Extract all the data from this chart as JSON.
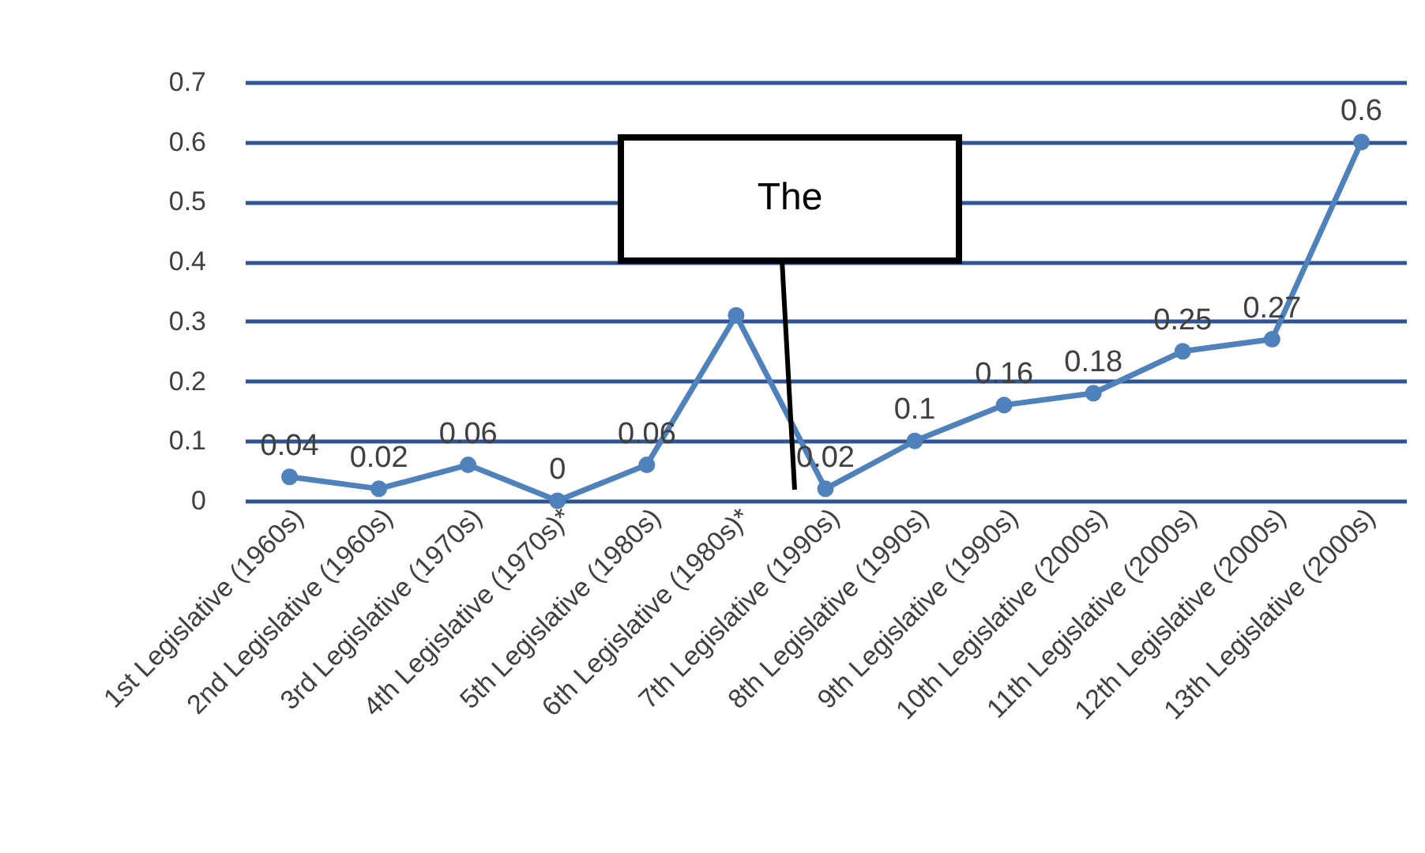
{
  "chart_data": {
    "type": "line",
    "categories": [
      "1st Legislative (1960s)",
      "2nd Legislative (1960s)",
      "3rd Legislative (1970s)",
      "4th Legislative (1970s)*",
      "5th Legislative (1980s)",
      "6th Legislative (1980s)*",
      "7th Legislative (1990s)",
      "8th Legislative (1990s)",
      "9th Legislative (1990s)",
      "10th Legislative (2000s)",
      "11th Legislative (2000s)",
      "12th Legislative (2000s)",
      "13th Legislative (2000s)"
    ],
    "series": [
      {
        "color": "#4f81bd",
        "values": [
          0.04,
          0.02,
          0.06,
          0,
          0.06,
          0.31,
          0.02,
          0.1,
          0.16,
          0.18,
          0.25,
          0.27,
          0.6
        ],
        "value_labels": [
          "0.04",
          "0.02",
          "0.06",
          "0",
          "0.06",
          null,
          "0.02",
          "0.1",
          "0.16",
          "0.18",
          "0.25",
          "0.27",
          "0.6"
        ]
      }
    ],
    "ylim": [
      0,
      0.7
    ],
    "yticks": [
      0,
      0.1,
      0.2,
      0.3,
      0.4,
      0.5,
      0.6,
      0.7
    ],
    "grid": "y",
    "marker": "circle",
    "line_style": "solid",
    "legend": false,
    "annotations": [
      "The"
    ]
  }
}
